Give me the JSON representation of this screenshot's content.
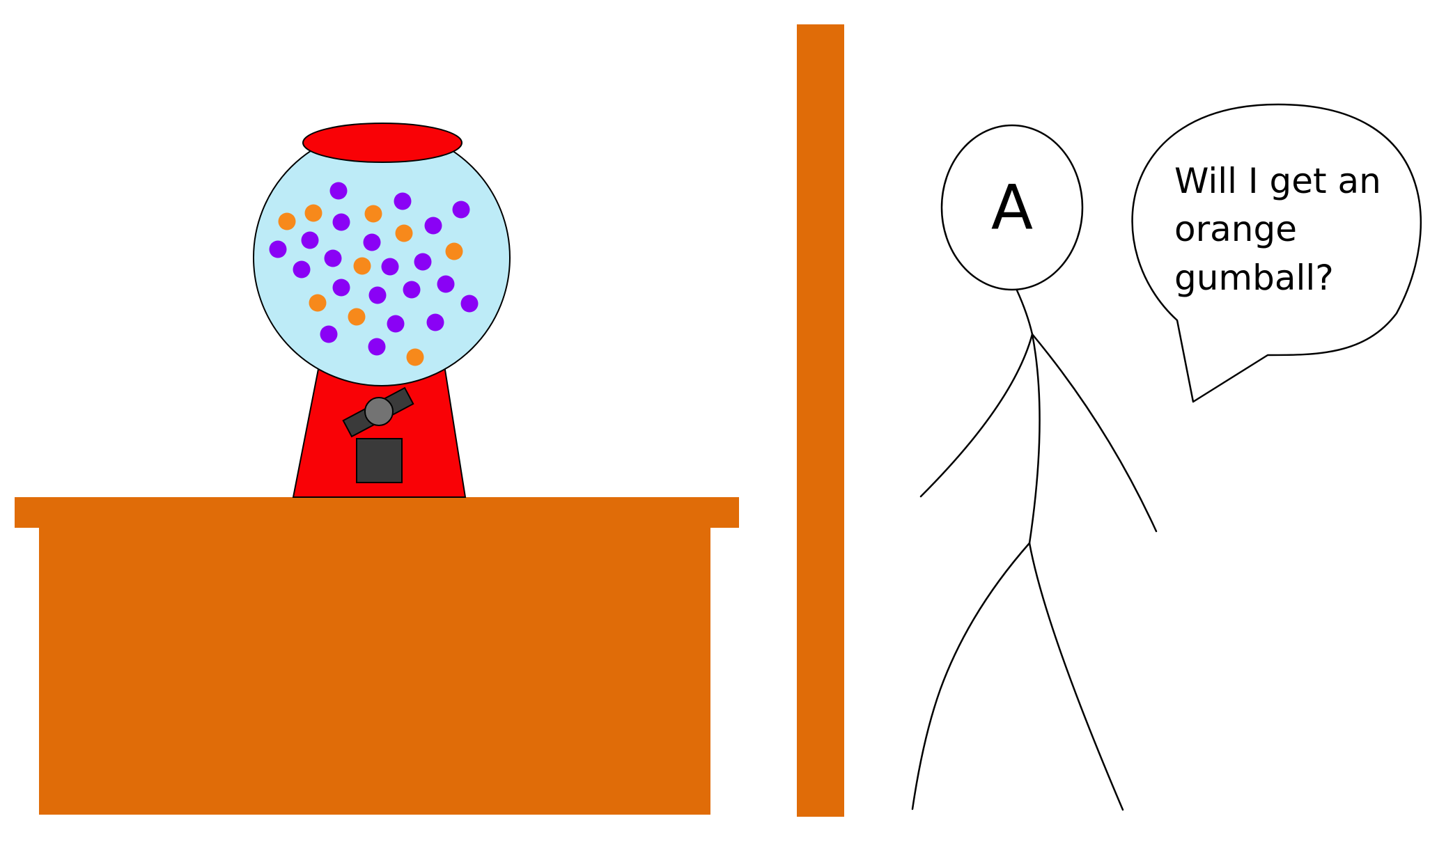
{
  "person": {
    "label": "A"
  },
  "speech_bubble": {
    "lines": [
      "Will I get an",
      "orange",
      "gumball?"
    ]
  },
  "gumball_machine": {
    "gumball_counts": {
      "orange": 10,
      "purple": 27
    }
  },
  "colors": {
    "wood": "#E06C08",
    "machine_red": "#F90206",
    "globe": "#BDEBF7",
    "gumball_orange": "#F7891B",
    "gumball_purple": "#8A02F5",
    "mechanism_dark": "#3A3A3A",
    "knob_gray": "#737373",
    "outline": "#000000",
    "background": "#FFFFFF"
  }
}
